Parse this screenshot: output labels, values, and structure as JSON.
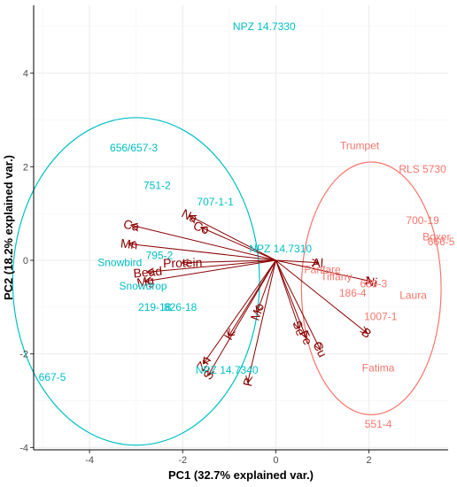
{
  "chart_data": {
    "type": "scatter",
    "title": "",
    "xlabel": "PC1 (32.7% explained var.)",
    "ylabel": "PC2 (18.2% explained var.)",
    "xlim": [
      -5.2,
      3.7
    ],
    "ylim": [
      -4.05,
      5.45
    ],
    "x_ticks": [
      -4,
      -2,
      0,
      2
    ],
    "y_ticks": [
      -4,
      -2,
      0,
      2,
      4
    ],
    "grid": true,
    "colors": {
      "group_a": "#00BFC4",
      "group_b": "#F8766D",
      "loadings": "#8B0000",
      "grid_major": "#ebebeb",
      "grid_minor": "#f5f5f5",
      "axis_line": "#000000"
    },
    "groups": [
      {
        "color": "#00BFC4",
        "ellipse": {
          "cx": -3.0,
          "cy": -0.45,
          "rx": 2.65,
          "ry": 3.5,
          "angle_deg": 0
        },
        "points": [
          {
            "label": "NPZ 14.7330",
            "x": -0.25,
            "y": 5.0
          },
          {
            "label": "656/657-3",
            "x": -3.05,
            "y": 2.4
          },
          {
            "label": "751-2",
            "x": -2.55,
            "y": 1.6
          },
          {
            "label": "707-1-1",
            "x": -1.3,
            "y": 1.25
          },
          {
            "label": "NPZ 14.7310",
            "x": 0.1,
            "y": 0.25
          },
          {
            "label": "795-2",
            "x": -2.5,
            "y": 0.1
          },
          {
            "label": "Snowbird",
            "x": -3.35,
            "y": -0.05
          },
          {
            "label": "Snowdrop",
            "x": -2.85,
            "y": -0.55
          },
          {
            "label": "219-18",
            "x": -2.6,
            "y": -1.0
          },
          {
            "label": "826-18",
            "x": -2.05,
            "y": -1.0
          },
          {
            "label": "667-5",
            "x": -4.8,
            "y": -2.5
          },
          {
            "label": "NPZ 14.7340",
            "x": -1.05,
            "y": -2.35
          }
        ]
      },
      {
        "color": "#F8766D",
        "ellipse": {
          "cx": 2.05,
          "cy": -0.6,
          "rx": 1.5,
          "ry": 2.7,
          "angle_deg": 0
        },
        "points": [
          {
            "label": "Trumpet",
            "x": 1.8,
            "y": 2.45
          },
          {
            "label": "RLS 5730",
            "x": 3.15,
            "y": 1.95
          },
          {
            "label": "700-19",
            "x": 3.15,
            "y": 0.85
          },
          {
            "label": "Boxer",
            "x": 3.45,
            "y": 0.5
          },
          {
            "label": "666-5",
            "x": 3.55,
            "y": 0.4
          },
          {
            "label": "Fanfare",
            "x": 1.0,
            "y": -0.2
          },
          {
            "label": "Tiffany",
            "x": 1.3,
            "y": -0.35
          },
          {
            "label": "689-3",
            "x": 2.1,
            "y": -0.5
          },
          {
            "label": "186-4",
            "x": 1.65,
            "y": -0.7
          },
          {
            "label": "Laura",
            "x": 2.95,
            "y": -0.75
          },
          {
            "label": "1007-1",
            "x": 2.25,
            "y": -1.2
          },
          {
            "label": "Fatima",
            "x": 2.2,
            "y": -2.3
          },
          {
            "label": "551-4",
            "x": 2.2,
            "y": -3.5
          }
        ]
      }
    ],
    "loadings": [
      {
        "label": "Ca",
        "x": -3.1,
        "y": 0.75
      },
      {
        "label": "Mn",
        "x": -3.15,
        "y": 0.35
      },
      {
        "label": "Na",
        "x": -1.85,
        "y": 0.95
      },
      {
        "label": "Co",
        "x": -1.6,
        "y": 0.7
      },
      {
        "label": "Protein",
        "x": -2.0,
        "y": -0.05
      },
      {
        "label": "Bead",
        "x": -2.75,
        "y": -0.25
      },
      {
        "label": "Mg",
        "x": -2.8,
        "y": -0.45
      },
      {
        "label": "Al",
        "x": 0.9,
        "y": -0.05
      },
      {
        "label": "Ni",
        "x": 2.05,
        "y": -0.45
      },
      {
        "label": "B",
        "x": 1.95,
        "y": -1.55
      },
      {
        "label": "Mo",
        "x": -0.4,
        "y": -1.1
      },
      {
        "label": "K",
        "x": -1.0,
        "y": -1.6
      },
      {
        "label": "Se",
        "x": 0.5,
        "y": -1.45
      },
      {
        "label": "Fe",
        "x": 0.65,
        "y": -1.65
      },
      {
        "label": "Cu",
        "x": 0.95,
        "y": -1.9
      },
      {
        "label": "Zn",
        "x": -1.55,
        "y": -2.2
      },
      {
        "label": "S",
        "x": -1.45,
        "y": -2.45
      },
      {
        "label": "P",
        "x": -0.6,
        "y": -2.6
      }
    ]
  }
}
